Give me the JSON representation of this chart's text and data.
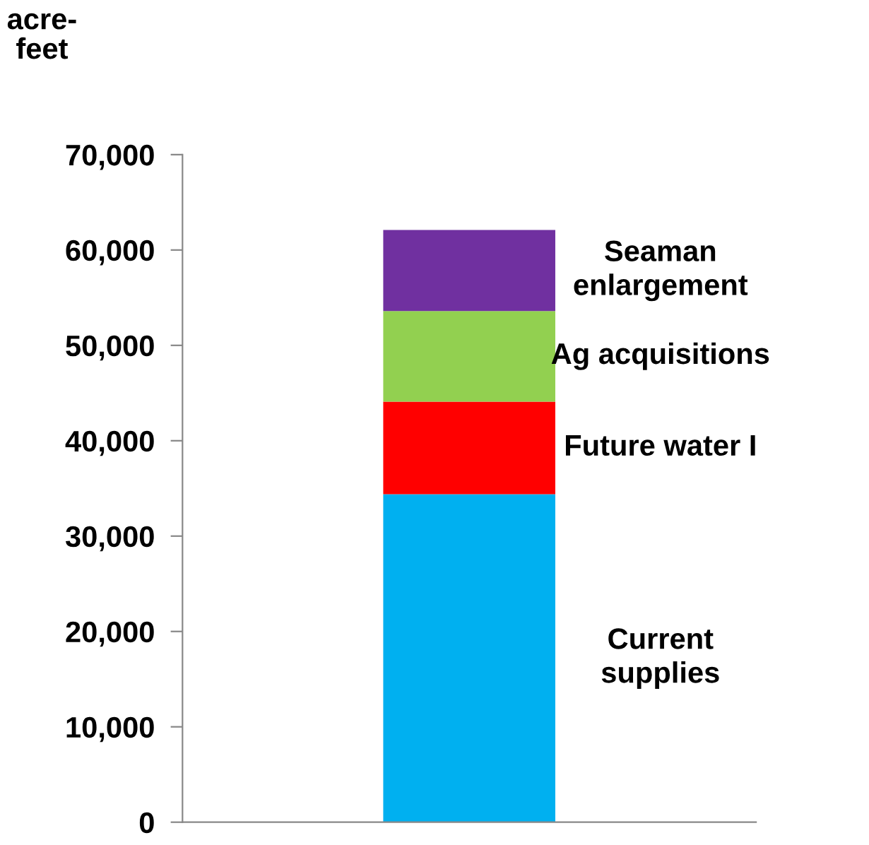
{
  "chart_data": {
    "type": "bar",
    "stacked": true,
    "ylabel": "acre-\nfeet",
    "categories": [
      null
    ],
    "series": [
      {
        "name": "Current\nsupplies",
        "color": "#00b0f0",
        "values": [
          34400
        ]
      },
      {
        "name": "Future water I",
        "color": "#ff0000",
        "values": [
          9700
        ]
      },
      {
        "name": "Ag acquisitions",
        "color": "#92d050",
        "values": [
          9500
        ]
      },
      {
        "name": "Seaman\nenlargement",
        "color": "#7030a0",
        "values": [
          8500
        ]
      }
    ],
    "ylim": [
      0,
      70000
    ],
    "yticks": [
      {
        "value": 0,
        "label": "0"
      },
      {
        "value": 10000,
        "label": "10,000"
      },
      {
        "value": 20000,
        "label": "20,000"
      },
      {
        "value": 30000,
        "label": "30,000"
      },
      {
        "value": 40000,
        "label": "40,000"
      },
      {
        "value": 50000,
        "label": "50,000"
      },
      {
        "value": 60000,
        "label": "60,000"
      },
      {
        "value": 70000,
        "label": "70,000"
      }
    ],
    "grid": false,
    "legend": false
  }
}
